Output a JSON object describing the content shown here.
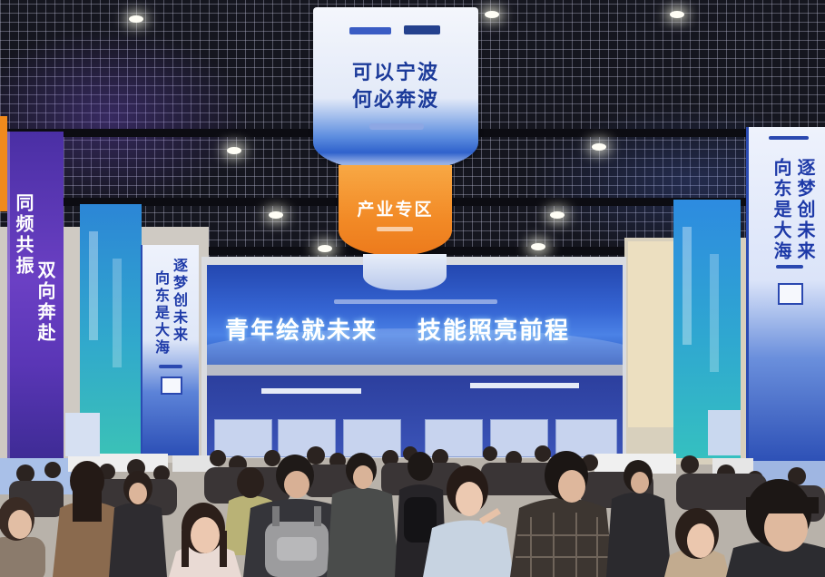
{
  "hanging_banner": {
    "line1": "可以宁波",
    "line2": "何必奔波"
  },
  "orange_banner": {
    "label": "产业专区"
  },
  "backdrop": {
    "slogan_left": "青年绘就未来",
    "slogan_right": "技能照亮前程"
  },
  "pillars": {
    "left": {
      "col1": "同频共振",
      "col2": "双向奔赴"
    },
    "center_left": {
      "col1": "逐梦创未来",
      "col2": "向东是大海"
    },
    "right": {
      "col1": "逐梦创未来",
      "col2": "向东是大海"
    }
  },
  "colors": {
    "ceiling": "#15161f",
    "backdrop_blue": "#3565d3",
    "pillar_purple": "#6b40c4",
    "pillar_teal": "#31a9cc",
    "banner_orange": "#f28a26",
    "banner_text_blue": "#1c3b9a"
  }
}
